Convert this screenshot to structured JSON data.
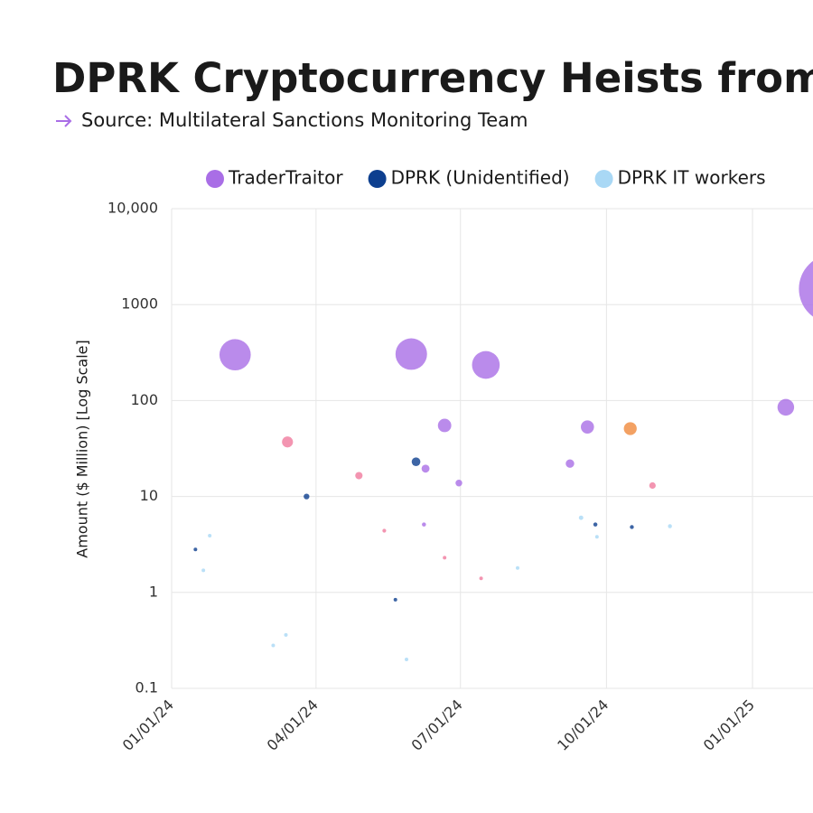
{
  "chart_data": {
    "type": "scatter",
    "title": "DPRK Cryptocurrency Heists from Ja",
    "subtitle": "Source: Multilateral Sanctions Monitoring Team",
    "y_label": "Amount ($ Million) [Log Scale]",
    "log_scale": true,
    "grid": true,
    "legend": "top",
    "xlim": [
      "01/01/24",
      "02/07/25"
    ],
    "xticks": [
      "01/01/24",
      "04/01/24",
      "07/01/24",
      "10/01/24",
      "01/01/25"
    ],
    "ylim": [
      0.1,
      10000
    ],
    "yticks": [
      {
        "value": 10000,
        "label": "10,000"
      },
      1000,
      100,
      10,
      1,
      0.1
    ],
    "series": [
      {
        "name": "TraderTraitor",
        "color": "#a96ee6",
        "x": [
          "02/10/24",
          "05/31/24",
          "07/17/24",
          "06/21/24",
          "06/09/24",
          "06/30/24",
          "06/08/24",
          "09/08/24",
          "09/19/24",
          "01/22/25",
          "02/21/25"
        ],
        "values": [
          300,
          305,
          235,
          55,
          19.5,
          13.8,
          5.1,
          22,
          53,
          85,
          1460
        ]
      },
      {
        "name": "DPRK (Unidentified)",
        "color": "#0d3f8f",
        "x": [
          "01/16/24",
          "03/26/24",
          "06/03/24",
          "05/21/24",
          "09/24/24",
          "10/17/24"
        ],
        "values": [
          2.8,
          10,
          23,
          0.84,
          5.1,
          4.8
        ]
      },
      {
        "name": "DPRK IT workers",
        "color": "#a9d8f5",
        "x": [
          "01/25/24",
          "01/21/24",
          "03/05/24",
          "03/13/24",
          "05/28/24",
          "08/06/24",
          "09/15/24",
          "09/25/24",
          "11/10/24"
        ],
        "values": [
          3.9,
          1.7,
          0.28,
          0.36,
          0.2,
          1.8,
          6,
          3.8,
          4.9
        ]
      },
      {
        "color": "#f07a9e",
        "x": [
          "03/14/24",
          "04/28/24",
          "05/14/24",
          "06/21/24",
          "07/14/24",
          "10/30/24"
        ],
        "values": [
          37,
          16.5,
          4.4,
          2.3,
          1.4,
          13
        ]
      },
      {
        "color": "#f08a3c",
        "x": [
          "10/16/24"
        ],
        "values": [
          51
        ]
      }
    ]
  }
}
